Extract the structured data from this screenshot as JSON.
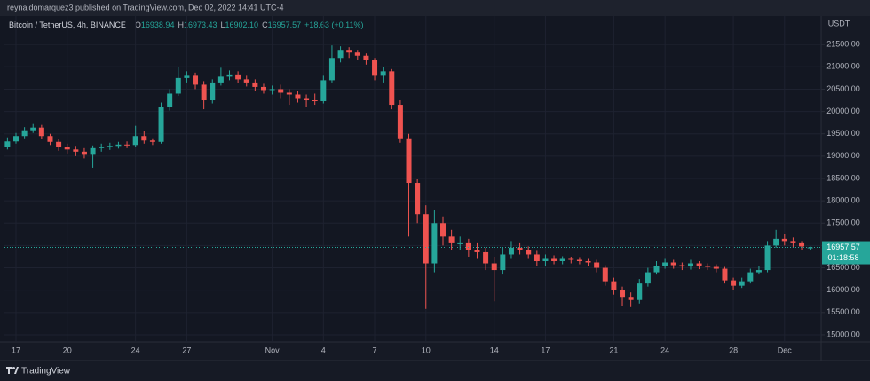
{
  "header": {
    "attribution": "reynaldomarquez3 published on TradingView.com, Dec 02, 2022 14:41 UTC-4"
  },
  "footer": {
    "brand": "TradingView"
  },
  "chart_data": {
    "type": "candlestick",
    "title": "Bitcoin / TetherUS, 4h, BINANCE",
    "ohlc_header": [
      {
        "prefix": "O",
        "value": "16938.94"
      },
      {
        "prefix": "H",
        "value": "16973.43"
      },
      {
        "prefix": "L",
        "value": "16902.10"
      },
      {
        "prefix": "C",
        "value": "16957.57"
      }
    ],
    "change": "+18.63 (+0.11%)",
    "y_axis_label": "USDT",
    "up_color": "#26a69a",
    "down_color": "#ef5350",
    "grid": true,
    "categories": [
      null,
      "17",
      null,
      null,
      null,
      null,
      null,
      "20",
      null,
      null,
      null,
      null,
      null,
      null,
      null,
      "24",
      null,
      null,
      null,
      null,
      null,
      "27",
      null,
      null,
      null,
      null,
      null,
      null,
      null,
      null,
      null,
      "Nov",
      null,
      null,
      null,
      null,
      null,
      "4",
      null,
      null,
      null,
      null,
      null,
      "7",
      null,
      null,
      null,
      null,
      null,
      "10",
      null,
      null,
      null,
      null,
      null,
      null,
      null,
      "14",
      null,
      null,
      null,
      null,
      null,
      "17",
      null,
      null,
      null,
      null,
      null,
      null,
      null,
      "21",
      null,
      null,
      null,
      null,
      null,
      "24",
      null,
      null,
      null,
      null,
      null,
      null,
      null,
      "28",
      null,
      null,
      null,
      null,
      null,
      "Dec",
      null,
      null,
      null
    ],
    "open": [
      19200,
      19330,
      19450,
      19580,
      19640,
      19450,
      19320,
      19200,
      19150,
      19100,
      19050,
      19180,
      19200,
      19230,
      19260,
      19250,
      19450,
      19350,
      19320,
      20100,
      20400,
      20750,
      20800,
      20600,
      20250,
      20650,
      20780,
      20830,
      20720,
      20650,
      20550,
      20480,
      20500,
      20420,
      20380,
      20300,
      20250,
      20230,
      20700,
      21200,
      21380,
      21320,
      21250,
      21150,
      20800,
      20900,
      20150,
      19400,
      18400,
      17700,
      16600,
      17500,
      17200,
      17050,
      17050,
      16900,
      16850,
      16600,
      16450,
      16800,
      16950,
      16900,
      16800,
      16650,
      16700,
      16650,
      16700,
      16680,
      16650,
      16620,
      16500,
      16200,
      16000,
      15850,
      15780,
      16150,
      16400,
      16550,
      16620,
      16560,
      16530,
      16600,
      16540,
      16520,
      16480,
      16220,
      16100,
      16200,
      16400,
      16450,
      17000,
      17150,
      17100,
      17050,
      16938.94
    ],
    "high": [
      19420,
      19520,
      19650,
      19720,
      19700,
      19500,
      19380,
      19280,
      19230,
      19180,
      19240,
      19280,
      19300,
      19320,
      19330,
      19680,
      19560,
      19400,
      20200,
      20500,
      21000,
      20900,
      20870,
      20680,
      20720,
      20980,
      20920,
      20900,
      20800,
      20720,
      20620,
      20580,
      20600,
      20500,
      20450,
      20380,
      20400,
      20800,
      21480,
      21460,
      21440,
      21380,
      21300,
      21200,
      21000,
      20950,
      20250,
      19500,
      18500,
      17900,
      17800,
      17650,
      17350,
      17200,
      17150,
      17050,
      16950,
      16750,
      16950,
      17100,
      17050,
      16980,
      16880,
      16800,
      16780,
      16760,
      16750,
      16740,
      16700,
      16680,
      16560,
      16280,
      16080,
      15950,
      16250,
      16500,
      16650,
      16700,
      16680,
      16620,
      16680,
      16650,
      16600,
      16580,
      16520,
      16280,
      16280,
      16480,
      16550,
      17100,
      17350,
      17250,
      17180,
      17100,
      16973.43
    ],
    "low": [
      19150,
      19280,
      19400,
      19520,
      19380,
      19250,
      19120,
      19060,
      19000,
      18950,
      18740,
      19100,
      19140,
      19170,
      19180,
      19200,
      19280,
      19250,
      19280,
      20020,
      20350,
      20650,
      20500,
      20050,
      20180,
      20580,
      20700,
      20640,
      20560,
      20450,
      20400,
      20380,
      20300,
      20150,
      20200,
      20100,
      20150,
      20180,
      20650,
      21100,
      21200,
      21150,
      21050,
      20700,
      20650,
      20050,
      19300,
      17200,
      17500,
      15580,
      16400,
      17000,
      16900,
      16900,
      16750,
      16700,
      16450,
      15750,
      16350,
      16700,
      16800,
      16700,
      16550,
      16550,
      16580,
      16580,
      16600,
      16580,
      16550,
      16400,
      16100,
      15900,
      15650,
      15620,
      15700,
      16080,
      16350,
      16480,
      16480,
      16450,
      16460,
      16470,
      16450,
      16400,
      16150,
      16000,
      16050,
      16150,
      16350,
      16400,
      16950,
      17000,
      16950,
      16900,
      16902.1
    ],
    "close": [
      19330,
      19450,
      19580,
      19640,
      19450,
      19320,
      19200,
      19150,
      19100,
      19050,
      19180,
      19200,
      19230,
      19260,
      19250,
      19450,
      19350,
      19320,
      20100,
      20400,
      20750,
      20800,
      20600,
      20250,
      20650,
      20780,
      20830,
      20720,
      20650,
      20550,
      20480,
      20500,
      20420,
      20380,
      20300,
      20250,
      20230,
      20700,
      21200,
      21380,
      21320,
      21250,
      21150,
      20800,
      20900,
      20150,
      19400,
      18400,
      17700,
      16600,
      17500,
      17200,
      17050,
      17050,
      16900,
      16850,
      16600,
      16450,
      16800,
      16950,
      16900,
      16800,
      16650,
      16700,
      16650,
      16700,
      16680,
      16650,
      16620,
      16500,
      16200,
      16000,
      15850,
      15780,
      16150,
      16400,
      16550,
      16620,
      16560,
      16530,
      16600,
      16540,
      16520,
      16480,
      16220,
      16100,
      16200,
      16400,
      16450,
      17000,
      17150,
      17100,
      17050,
      16980,
      16957.57
    ],
    "ylim": [
      14840,
      22140
    ],
    "yticks": [
      {
        "value": 15000,
        "label": "15000.00"
      },
      {
        "value": 15500,
        "label": "15500.00"
      },
      {
        "value": 16000,
        "label": "16000.00"
      },
      {
        "value": 16500,
        "label": "16500.00"
      },
      {
        "value": 17000,
        "label": "17000.00"
      },
      {
        "value": 17500,
        "label": "17500.00"
      },
      {
        "value": 18000,
        "label": "18000.00"
      },
      {
        "value": 18500,
        "label": "18500.00"
      },
      {
        "value": 19000,
        "label": "19000.00"
      },
      {
        "value": 19500,
        "label": "19500.00"
      },
      {
        "value": 20000,
        "label": "20000.00"
      },
      {
        "value": 20500,
        "label": "20500.00"
      },
      {
        "value": 21000,
        "label": "21000.00"
      },
      {
        "value": 21500,
        "label": "21500.00"
      }
    ],
    "last_price": 16957.57,
    "countdown": "01:18:58"
  }
}
